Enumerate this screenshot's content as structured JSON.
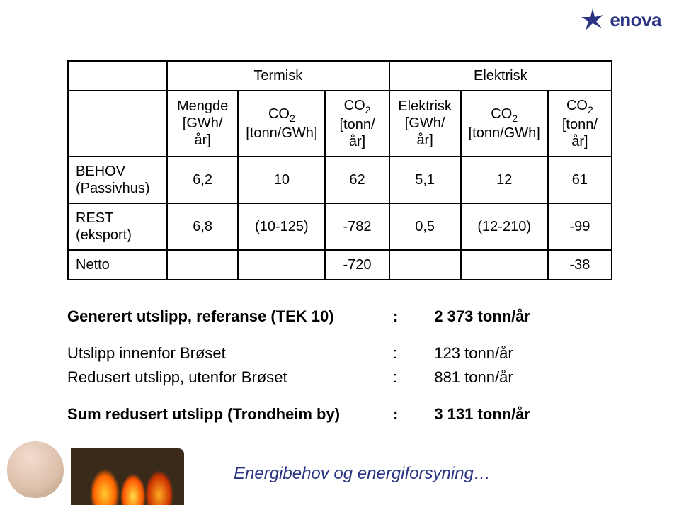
{
  "brand": {
    "name": "enova",
    "color": "#2b3482"
  },
  "table": {
    "group_headers": {
      "left": "Termisk",
      "right": "Elektrisk"
    },
    "columns": [
      {
        "line1": "Mengde",
        "line2": "[GWh/år]"
      },
      {
        "line1": "CO",
        "sub": "2",
        "line2": "[tonn/GWh]"
      },
      {
        "line1": "CO",
        "sub": "2",
        "line2": "[tonn/år]"
      },
      {
        "line1": "Elektrisk",
        "line2": "[GWh/år]"
      },
      {
        "line1": "CO",
        "sub": "2",
        "line2": "[tonn/GWh]"
      },
      {
        "line1": "CO",
        "sub": "2",
        "line2": "[tonn/år]"
      }
    ],
    "rows": [
      {
        "label_l1": "BEHOV",
        "label_l2": "(Passivhus)",
        "c": [
          "6,2",
          "10",
          "62",
          "5,1",
          "12",
          "61"
        ]
      },
      {
        "label_l1": "REST",
        "label_l2": "(eksport)",
        "c": [
          "6,8",
          "(10-125)",
          "-782",
          "0,5",
          "(12-210)",
          "-99"
        ]
      }
    ],
    "netto": {
      "label": "Netto",
      "c3": "-720",
      "c6": "-38"
    }
  },
  "summary": {
    "lines": [
      {
        "label": "Generert utslipp, referanse (TEK 10)",
        "value": "2 373 tonn/år",
        "bold": true,
        "gap_after": true
      },
      {
        "label": "Utslipp innenfor Brøset",
        "value": "123 tonn/år",
        "bold": false
      },
      {
        "label": "Redusert utslipp, utenfor Brøset",
        "value": "881 tonn/år",
        "bold": false,
        "gap_after": true
      },
      {
        "label": "Sum redusert utslipp (Trondheim by)",
        "value": "3 131 tonn/år",
        "bold": true
      }
    ]
  },
  "footer": {
    "text": "Energibehov og energiforsyning…"
  }
}
